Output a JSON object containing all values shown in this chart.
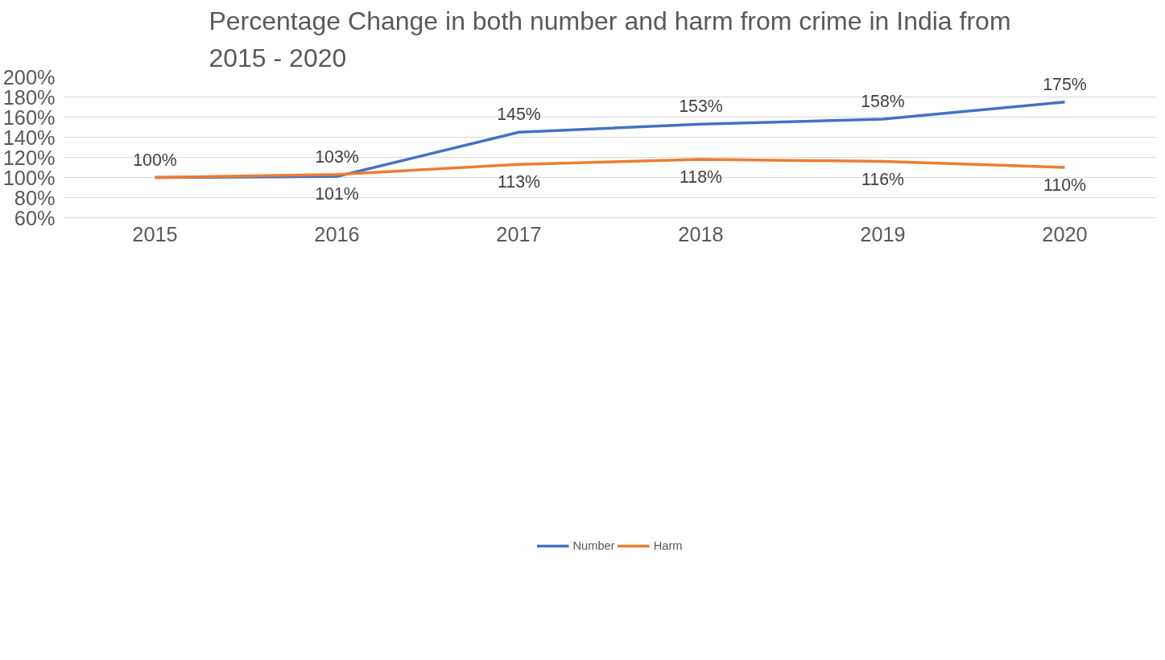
{
  "chart_data": {
    "type": "line",
    "title": "Percentage Change in both number and harm from crime in India from\n2015 - 2020",
    "categories": [
      "2015",
      "2016",
      "2017",
      "2018",
      "2019",
      "2020"
    ],
    "series": [
      {
        "name": "Number",
        "color": "#4472c4",
        "values": [
          100,
          101,
          145,
          153,
          158,
          175
        ],
        "value_labels": [
          "100%",
          "101%",
          "145%",
          "153%",
          "158%",
          "175%"
        ]
      },
      {
        "name": "Harm",
        "color": "#ed7d31",
        "values": [
          100,
          103,
          113,
          118,
          116,
          110
        ],
        "value_labels": [
          null,
          "103%",
          "113%",
          "118%",
          "116%",
          "110%"
        ]
      }
    ],
    "ylim": [
      60,
      200
    ],
    "yticks": [
      {
        "value": 60,
        "label": "60%"
      },
      {
        "value": 80,
        "label": "80%"
      },
      {
        "value": 100,
        "label": "100%"
      },
      {
        "value": 120,
        "label": "120%"
      },
      {
        "value": 140,
        "label": "140%"
      },
      {
        "value": 160,
        "label": "160%"
      },
      {
        "value": 180,
        "label": "180%"
      },
      {
        "value": 200,
        "label": "200%"
      }
    ],
    "grid": "y",
    "legend": "bottom",
    "marker": "none",
    "line_style": "solid"
  }
}
